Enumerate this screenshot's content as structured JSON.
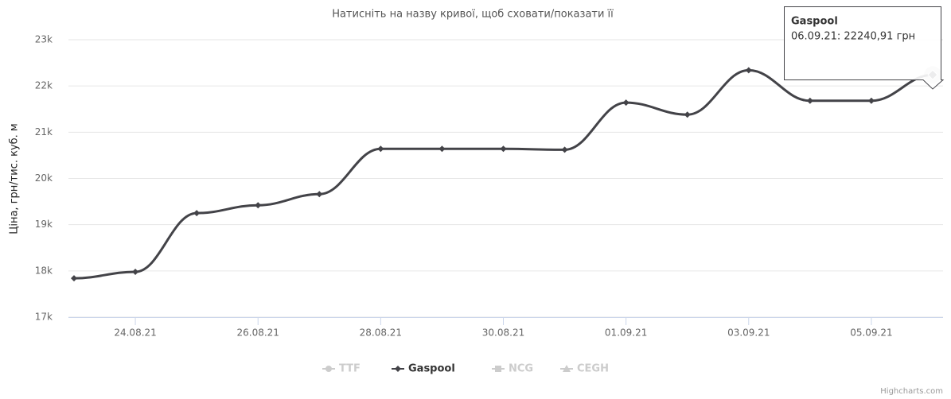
{
  "chart_data": {
    "type": "line",
    "title": "Натисніть на назву кривої, щоб сховати/показати її",
    "y_axis_label": "Ціна, грн/тис. куб. м",
    "categories": [
      null,
      "24.08.21",
      null,
      "26.08.21",
      null,
      "28.08.21",
      null,
      "30.08.21",
      null,
      "01.09.21",
      null,
      "03.09.21",
      null,
      "05.09.21",
      null
    ],
    "series": [
      {
        "name": "Gaspool",
        "color": "#434348",
        "values": [
          17840,
          17980,
          19250,
          19420,
          19660,
          20640,
          20640,
          20640,
          20620,
          21640,
          21380,
          22340,
          21680,
          21680,
          22240.91
        ]
      }
    ],
    "legend_items": [
      {
        "name": "TTF",
        "hidden": true
      },
      {
        "name": "Gaspool",
        "hidden": false
      },
      {
        "name": "NCG",
        "hidden": true
      },
      {
        "name": "CEGH",
        "hidden": true
      }
    ],
    "ylim": [
      17000,
      23000
    ],
    "yticks": [
      {
        "value": 17000,
        "label": "17k"
      },
      {
        "value": 18000,
        "label": "18k"
      },
      {
        "value": 19000,
        "label": "19k"
      },
      {
        "value": 20000,
        "label": "20k"
      },
      {
        "value": 21000,
        "label": "21k"
      },
      {
        "value": 22000,
        "label": "22k"
      },
      {
        "value": 23000,
        "label": "23k"
      }
    ],
    "grid": true,
    "tooltip": {
      "series": "Gaspool",
      "text": "06.09.21: 22240,91 грн"
    },
    "credits": "Highcharts.com"
  }
}
